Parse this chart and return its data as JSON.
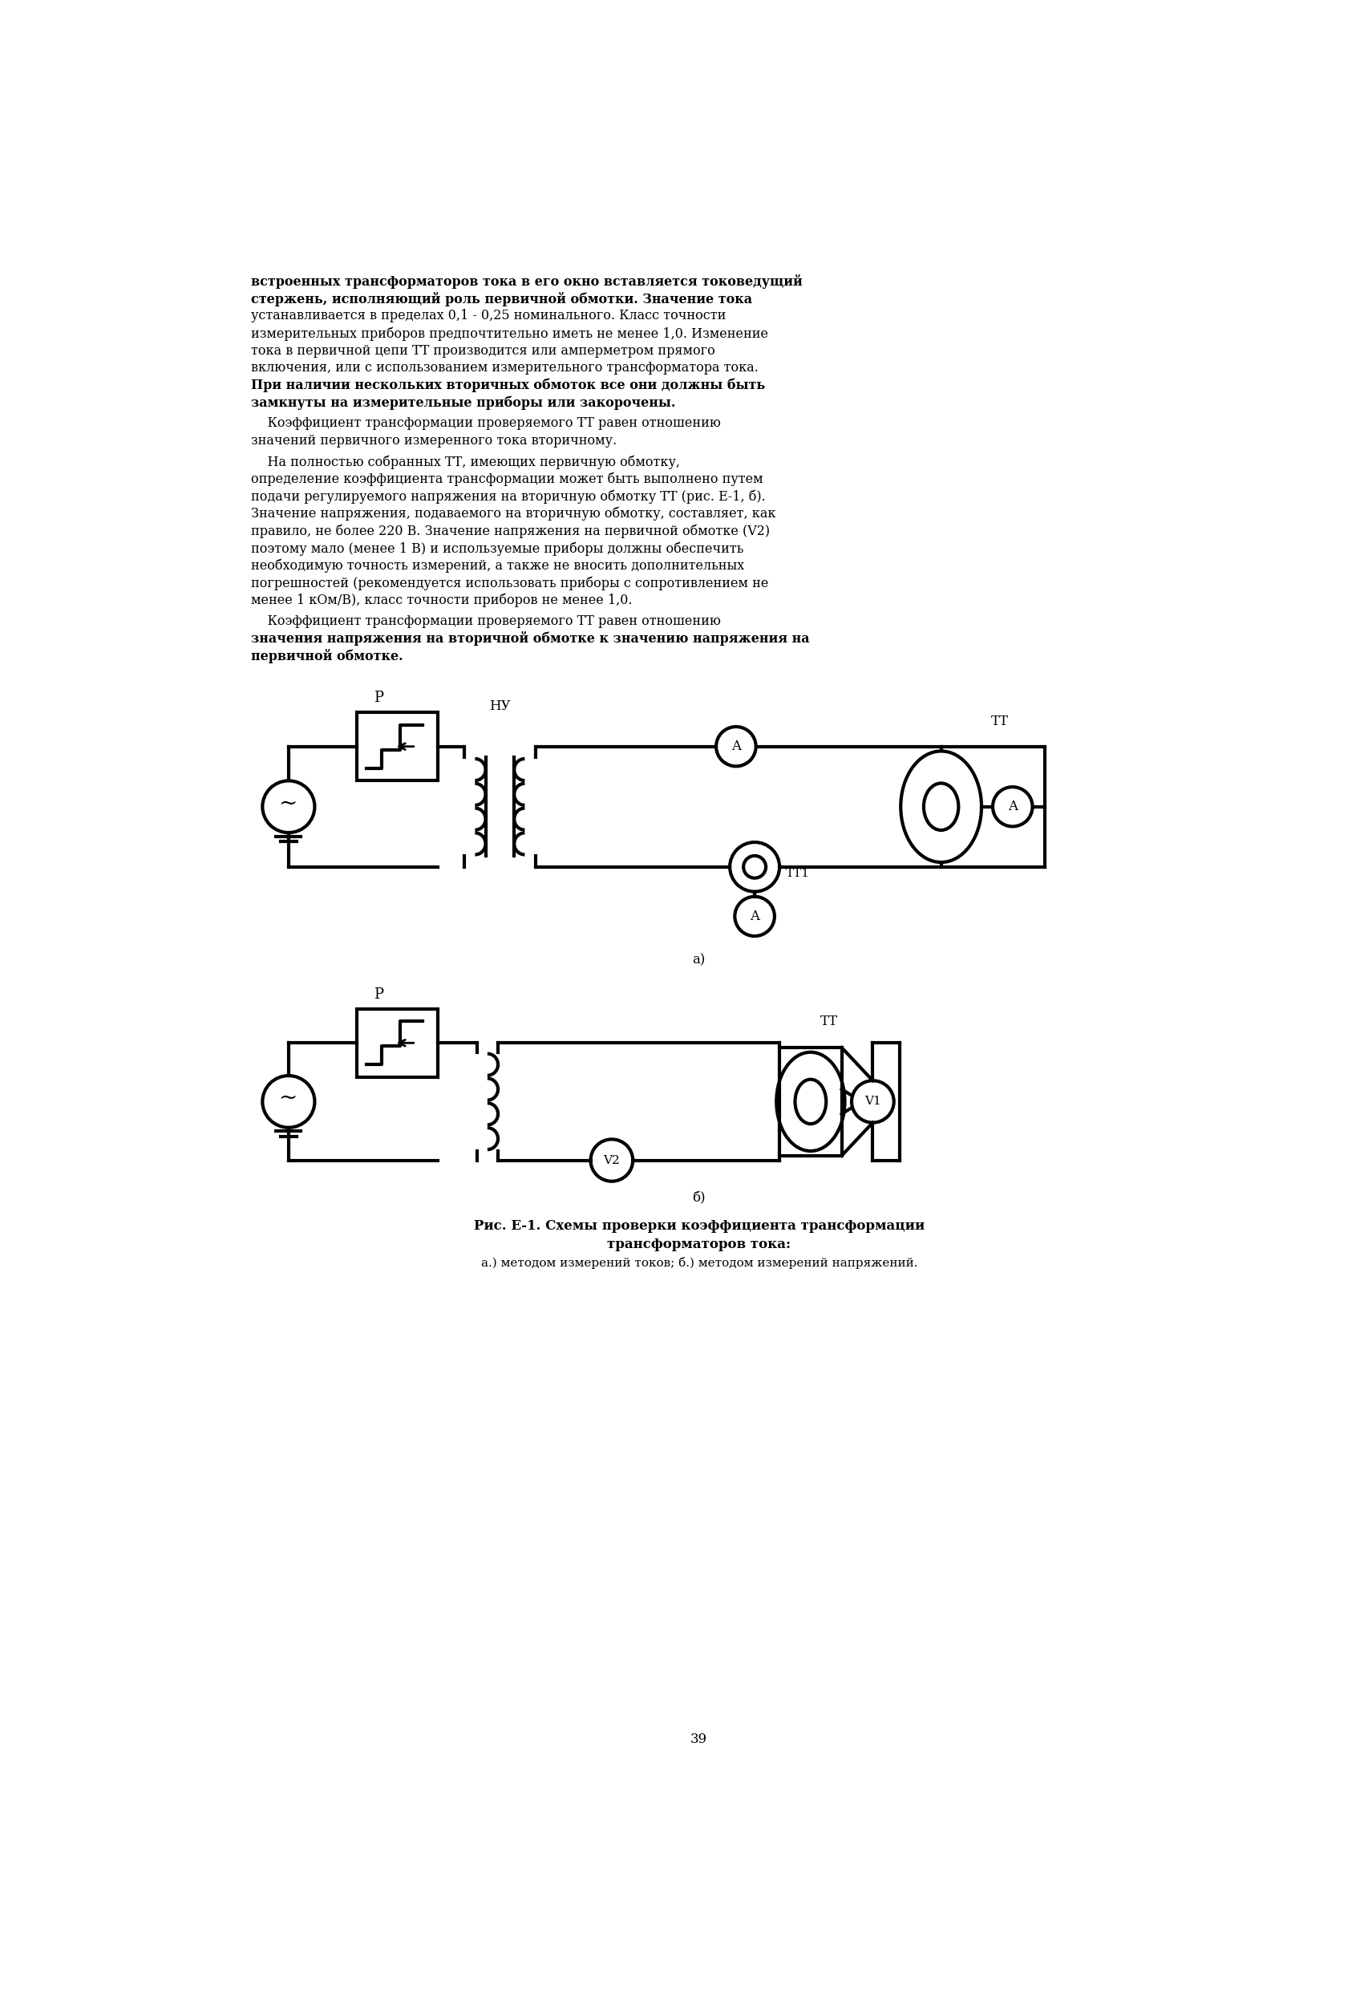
{
  "background_color": "#ffffff",
  "lm": 130,
  "rm": 1571,
  "body_fs": 11.5,
  "lh": 28,
  "lw_main": 3.0,
  "lines_p1": [
    "встроенных трансформаторов тока в его окно вставляется токоведущий",
    "стержень, исполняющий роль первичной обмотки. Значение тока",
    "устанавливается в пределах 0,1 - 0,25 номинального. Класс точности",
    "измерительных приборов предпочтительно иметь не менее 1,0. Изменение",
    "тока в первичной цепи ТТ производится или амперметром прямого",
    "включения, или с использованием измерительного трансформатора тока.",
    "При наличии нескольких вторичных обмоток все они должны быть",
    "замкнуты на измерительные приборы или закорочены."
  ],
  "p1_bold": [
    true,
    true,
    false,
    false,
    false,
    false,
    true,
    true
  ],
  "lines_p2": [
    "    Коэффициент трансформации проверяемого ТТ равен отношению",
    "значений первичного измеренного тока вторичному."
  ],
  "p2_bold": [
    false,
    false
  ],
  "lines_p3": [
    "    На полностью собранных ТТ, имеющих первичную обмотку,",
    "определение коэффициента трансформации может быть выполнено путем",
    "подачи регулируемого напряжения на вторичную обмотку ТТ (рис. Е-1, б).",
    "Значение напряжения, подаваемого на вторичную обмотку, составляет, как",
    "правило, не более 220 В. Значение напряжения на первичной обмотке (V2)",
    "поэтому мало (менее 1 В) и используемые приборы должны обеспечить",
    "необходимую точность измерений, а также не вносить дополнительных",
    "погрешностей (рекомендуется использовать приборы с сопротивлением не",
    "менее 1 кОм/В), класс точности приборов не менее 1,0."
  ],
  "p3_bold": [
    false,
    false,
    false,
    false,
    false,
    false,
    false,
    false,
    false
  ],
  "lines_p4": [
    "    Коэффициент трансформации проверяемого ТТ равен отношению",
    "значения напряжения на вторичной обмотке к значению напряжения на",
    "первичной обмотке."
  ],
  "p4_bold": [
    false,
    true,
    true
  ],
  "caption_bold": "Рис. Е-1. Схемы проверки коэффициента трансформации\nтрансформаторов тока:",
  "caption_regular": "а.) методом измерений токов; б.) методом измерений напряжений.",
  "label_a": "а)",
  "label_b": "б)",
  "page_number": "39"
}
